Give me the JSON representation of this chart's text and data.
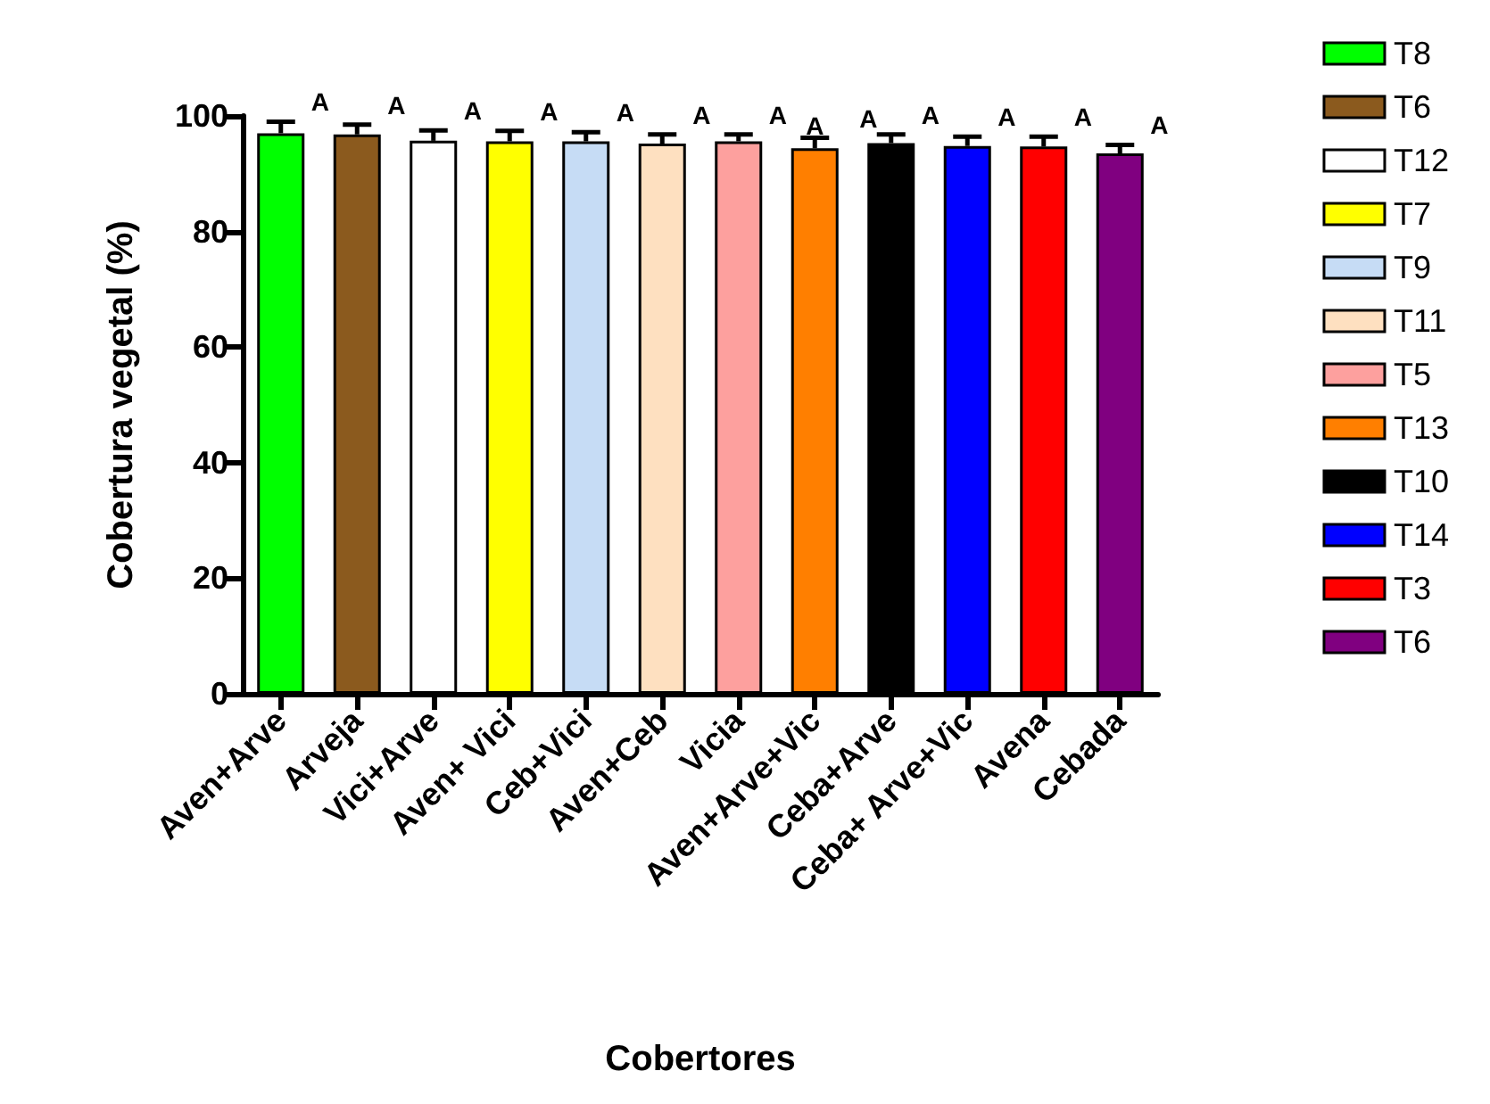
{
  "chart_data": {
    "type": "bar",
    "xlabel": "Cobertores",
    "ylabel": "Cobertura vegetal (%)",
    "categories": [
      "Aven+Arve",
      "Arveja",
      "Vici+Arve",
      "Aven+ Vici",
      "Ceb+Vici",
      "Aven+Ceb",
      "Vicia",
      "Aven+Arve+Vic",
      "Ceba+Arve",
      "Ceba+ Arve+Vic",
      "Avena",
      "Cebada"
    ],
    "series": [
      {
        "name": "T8",
        "color": "#00ff00",
        "values": [
          97.0,
          null,
          null,
          null,
          null,
          null,
          null,
          null,
          null,
          null,
          null,
          null
        ],
        "errors": [
          [
            97.0,
            99.0
          ],
          null,
          null,
          null,
          null,
          null,
          null,
          null,
          null,
          null,
          null,
          null
        ]
      },
      {
        "name": "T6",
        "color": "#8b5a1e",
        "values": [
          null,
          96.8,
          null,
          null,
          null,
          null,
          null,
          null,
          null,
          null,
          null,
          null
        ],
        "errors": [
          null,
          [
            96.8,
            98.5
          ],
          null,
          null,
          null,
          null,
          null,
          null,
          null,
          null,
          null,
          null
        ]
      },
      {
        "name": "T12",
        "color": "#ffffff",
        "values": [
          null,
          null,
          95.7,
          null,
          null,
          null,
          null,
          null,
          null,
          null,
          null,
          null
        ],
        "errors": [
          null,
          null,
          [
            95.7,
            97.5
          ],
          null,
          null,
          null,
          null,
          null,
          null,
          null,
          null,
          null
        ]
      },
      {
        "name": "T7",
        "color": "#ffff00",
        "values": [
          null,
          null,
          null,
          95.6,
          null,
          null,
          null,
          null,
          null,
          null,
          null,
          null
        ],
        "errors": [
          null,
          null,
          null,
          [
            95.6,
            97.4
          ],
          null,
          null,
          null,
          null,
          null,
          null,
          null,
          null
        ]
      },
      {
        "name": "T9",
        "color": "#c6dcf5",
        "values": [
          null,
          null,
          null,
          null,
          95.6,
          null,
          null,
          null,
          null,
          null,
          null,
          null
        ],
        "errors": [
          null,
          null,
          null,
          null,
          [
            95.6,
            97.2
          ],
          null,
          null,
          null,
          null,
          null,
          null,
          null
        ]
      },
      {
        "name": "T11",
        "color": "#fee0c0",
        "values": [
          null,
          null,
          null,
          null,
          null,
          95.2,
          null,
          null,
          null,
          null,
          null,
          null
        ],
        "errors": [
          null,
          null,
          null,
          null,
          null,
          [
            95.2,
            96.8
          ],
          null,
          null,
          null,
          null,
          null,
          null
        ]
      },
      {
        "name": "T5",
        "color": "#fda09e",
        "values": [
          null,
          null,
          null,
          null,
          null,
          null,
          95.6,
          null,
          null,
          null,
          null,
          null
        ],
        "errors": [
          null,
          null,
          null,
          null,
          null,
          null,
          [
            95.6,
            96.8
          ],
          null,
          null,
          null,
          null,
          null
        ]
      },
      {
        "name": "T13",
        "color": "#ff7f00",
        "values": [
          null,
          null,
          null,
          null,
          null,
          null,
          null,
          94.4,
          null,
          null,
          null,
          null
        ],
        "errors": [
          null,
          null,
          null,
          null,
          null,
          null,
          null,
          [
            94.4,
            96.2
          ],
          null,
          null,
          null,
          null
        ]
      },
      {
        "name": "T10",
        "color": "#000000",
        "values": [
          null,
          null,
          null,
          null,
          null,
          null,
          null,
          null,
          95.3,
          null,
          null,
          null
        ],
        "errors": [
          null,
          null,
          null,
          null,
          null,
          null,
          null,
          null,
          [
            95.3,
            96.8
          ],
          null,
          null,
          null
        ]
      },
      {
        "name": "T14",
        "color": "#0000ff",
        "values": [
          null,
          null,
          null,
          null,
          null,
          null,
          null,
          null,
          null,
          94.8,
          null,
          null
        ],
        "errors": [
          null,
          null,
          null,
          null,
          null,
          null,
          null,
          null,
          null,
          [
            94.8,
            96.4
          ],
          null,
          null
        ]
      },
      {
        "name": "T3",
        "color": "#ff0000",
        "values": [
          null,
          null,
          null,
          null,
          null,
          null,
          null,
          null,
          null,
          null,
          94.7,
          null
        ],
        "errors": [
          null,
          null,
          null,
          null,
          null,
          null,
          null,
          null,
          null,
          null,
          [
            94.7,
            96.4
          ],
          null
        ]
      },
      {
        "name": "T6",
        "color": "#800080",
        "values": [
          null,
          null,
          null,
          null,
          null,
          null,
          null,
          null,
          null,
          null,
          null,
          93.5
        ],
        "errors": [
          null,
          null,
          null,
          null,
          null,
          null,
          null,
          null,
          null,
          null,
          null,
          [
            93.5,
            95.0
          ]
        ]
      }
    ],
    "annotations": [
      {
        "text": "A",
        "x": "Aven+Arve",
        "y": 99.0
      },
      {
        "text": "A",
        "x": "Arveja",
        "y": 98.5
      },
      {
        "text": "A",
        "x": "Vici+Arve",
        "y": 97.5
      },
      {
        "text": "A",
        "x": "Aven+ Vici",
        "y": 97.4
      },
      {
        "text": "A",
        "x": "Ceb+Vici",
        "y": 97.2
      },
      {
        "text": "A",
        "x": "Aven+Ceb",
        "y": 96.8
      },
      {
        "text": "A",
        "x": "Vicia",
        "y": 96.8
      },
      {
        "text": "A",
        "x": "Aven+Arve+Vic",
        "y": 96.2
      },
      {
        "text": "A",
        "x": "Aven+Arve+Vic",
        "y": 96.2
      },
      {
        "text": "A",
        "x": "Ceba+Arve",
        "y": 96.8
      },
      {
        "text": "A",
        "x": "Ceba+ Arve+Vic",
        "y": 96.4
      },
      {
        "text": "A",
        "x": "Avena",
        "y": 96.4
      },
      {
        "text": "A",
        "x": "Cebada",
        "y": 95.0
      }
    ],
    "ylim": [
      0,
      100
    ],
    "yticks": [
      0,
      20,
      40,
      60,
      80,
      100
    ],
    "grid": false,
    "legend": "right"
  }
}
